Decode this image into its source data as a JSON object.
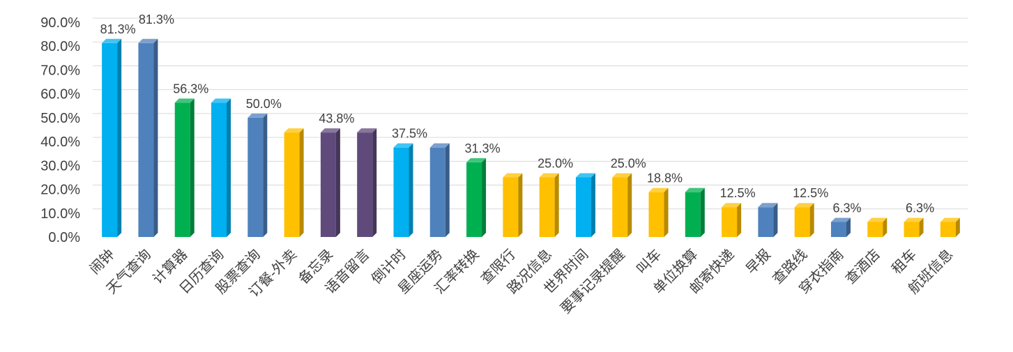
{
  "chart_data": {
    "type": "bar",
    "title": "",
    "xlabel": "",
    "ylabel": "",
    "ylim": [
      0,
      90
    ],
    "yticks": [
      "0.0%",
      "10.0%",
      "20.0%",
      "30.0%",
      "40.0%",
      "50.0%",
      "60.0%",
      "70.0%",
      "80.0%",
      "90.0%"
    ],
    "grid": true,
    "legend": "none",
    "categories": [
      "闹钟",
      "天气查询",
      "计算器",
      "日历查询",
      "股票查询",
      "订餐-外卖",
      "备忘录",
      "语音留言",
      "倒计时",
      "星座运势",
      "汇率转换",
      "查限行",
      "路况信息",
      "世界时间",
      "要事记录提醒",
      "叫车",
      "单位换算",
      "邮寄快递",
      "早报",
      "查路线",
      "穿衣指南",
      "查酒店",
      "租车",
      "航班信息"
    ],
    "values": [
      81.3,
      81.3,
      56.3,
      56.3,
      50.0,
      43.8,
      43.8,
      43.8,
      37.5,
      37.5,
      31.3,
      25.0,
      25.0,
      25.0,
      25.0,
      18.8,
      18.8,
      12.5,
      12.5,
      12.5,
      6.3,
      6.3,
      6.3,
      6.3
    ],
    "bar_colors": [
      "#00b0f0",
      "#4f81bd",
      "#00b050",
      "#00b0f0",
      "#4f81bd",
      "#ffc000",
      "#604a7b",
      "#604a7b",
      "#00b0f0",
      "#4f81bd",
      "#00b050",
      "#ffc000",
      "#ffc000",
      "#00b0f0",
      "#ffc000",
      "#ffc000",
      "#00b050",
      "#ffc000",
      "#4f81bd",
      "#ffc000",
      "#4f81bd",
      "#ffc000",
      "#ffc000",
      "#ffc000"
    ],
    "data_labels": [
      {
        "index": 0,
        "text": "81.3%"
      },
      {
        "index": 1,
        "text": "81.3%"
      },
      {
        "index": 2,
        "text": "56.3%"
      },
      {
        "index": 4,
        "text": "50.0%"
      },
      {
        "index": 6,
        "text": "43.8%"
      },
      {
        "index": 8,
        "text": "37.5%"
      },
      {
        "index": 10,
        "text": "31.3%"
      },
      {
        "index": 12,
        "text": "25.0%"
      },
      {
        "index": 14,
        "text": "25.0%"
      },
      {
        "index": 15,
        "text": "18.8%"
      },
      {
        "index": 17,
        "text": "12.5%"
      },
      {
        "index": 19,
        "text": "12.5%"
      },
      {
        "index": 20,
        "text": "6.3%"
      },
      {
        "index": 22,
        "text": "6.3%"
      }
    ]
  }
}
